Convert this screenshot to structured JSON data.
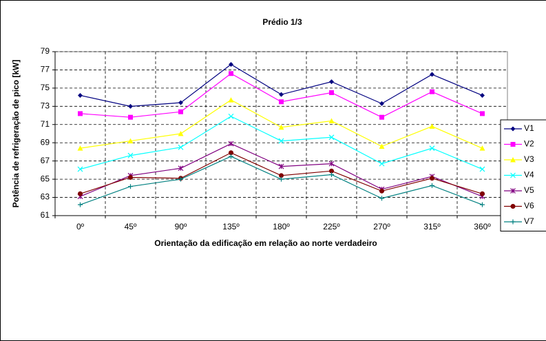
{
  "chart_data": {
    "type": "line",
    "title": "Prédio 1/3",
    "x_label": "Orientação da edificação em relação ao norte verdadeiro",
    "y_label": "Potência de refrigeração de pico [kW]",
    "categories": [
      "0º",
      "45º",
      "90º",
      "135º",
      "180º",
      "225º",
      "270º",
      "315º",
      "360º"
    ],
    "ylim": [
      61,
      79
    ],
    "yticks": [
      61,
      63,
      65,
      67,
      69,
      71,
      73,
      75,
      77,
      79
    ],
    "grid": true,
    "legend": "right",
    "series": [
      {
        "name": "V1",
        "color": "#000080",
        "marker": "diamond",
        "values": [
          74.2,
          73.0,
          73.4,
          77.6,
          74.3,
          75.7,
          73.3,
          76.5,
          74.2
        ]
      },
      {
        "name": "V2",
        "color": "#ff00ff",
        "marker": "square",
        "values": [
          72.2,
          71.8,
          72.4,
          76.6,
          73.5,
          74.5,
          71.8,
          74.6,
          72.2
        ]
      },
      {
        "name": "V3",
        "color": "#ffff00",
        "marker": "triangle",
        "values": [
          68.4,
          69.2,
          70.0,
          73.7,
          70.7,
          71.4,
          68.6,
          70.8,
          68.4
        ]
      },
      {
        "name": "V4",
        "color": "#00ffff",
        "marker": "x",
        "values": [
          66.1,
          67.6,
          68.5,
          71.9,
          69.2,
          69.6,
          66.7,
          68.4,
          66.1
        ]
      },
      {
        "name": "V5",
        "color": "#800080",
        "marker": "star",
        "values": [
          63.1,
          65.4,
          66.2,
          68.9,
          66.4,
          66.7,
          63.9,
          65.3,
          63.1
        ]
      },
      {
        "name": "V6",
        "color": "#800000",
        "marker": "circle",
        "values": [
          63.4,
          65.2,
          65.1,
          67.9,
          65.4,
          65.9,
          63.7,
          65.1,
          63.4
        ]
      },
      {
        "name": "V7",
        "color": "#008080",
        "marker": "plus",
        "values": [
          62.2,
          64.2,
          65.0,
          67.5,
          65.0,
          65.5,
          62.9,
          64.3,
          62.2
        ]
      }
    ]
  }
}
